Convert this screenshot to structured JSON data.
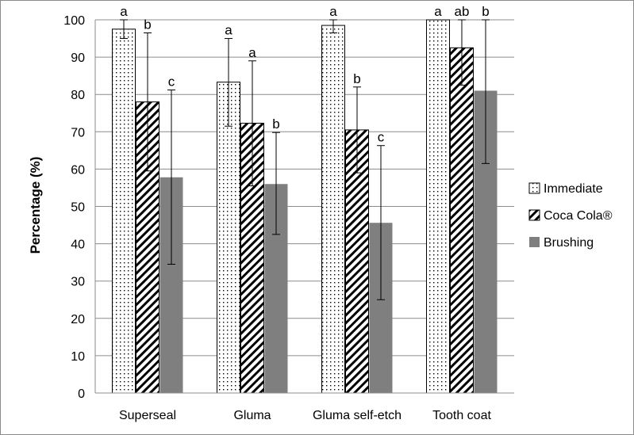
{
  "chart_data": {
    "type": "bar",
    "title": "",
    "xlabel": "",
    "ylabel": "Percentage (%)",
    "ylim": [
      0,
      100
    ],
    "yticks": [
      "0",
      "10",
      "20",
      "30",
      "40",
      "50",
      "60",
      "70",
      "80",
      "90",
      "100"
    ],
    "grid": true,
    "legend_position": "right",
    "categories": [
      "Superseal",
      "Gluma",
      "Gluma self-etch",
      "Tooth coat"
    ],
    "series": [
      {
        "name": "Immediate",
        "pattern": "dots",
        "values": [
          97.5,
          83.3,
          98.5,
          100
        ],
        "err_low": [
          95,
          71.5,
          96.5,
          100
        ],
        "err_high": [
          100,
          95,
          100,
          100
        ],
        "letters": [
          "a",
          "a",
          "a",
          "a"
        ]
      },
      {
        "name": "Coca Cola®",
        "pattern": "diagonal",
        "values": [
          78,
          72.3,
          70.5,
          92.5
        ],
        "err_low": [
          59.5,
          55.5,
          59,
          82.5
        ],
        "err_high": [
          96.5,
          89,
          82,
          100
        ],
        "letters": [
          "b",
          "a",
          "b",
          "ab"
        ]
      },
      {
        "name": "Brushing",
        "pattern": "solid",
        "color": "#7f7f7f",
        "values": [
          57.8,
          56,
          45.6,
          81
        ],
        "err_low": [
          34.5,
          42.5,
          25,
          61.5
        ],
        "err_high": [
          81.2,
          69.8,
          66.3,
          100
        ],
        "letters": [
          "c",
          "b",
          "c",
          "b"
        ]
      }
    ]
  }
}
